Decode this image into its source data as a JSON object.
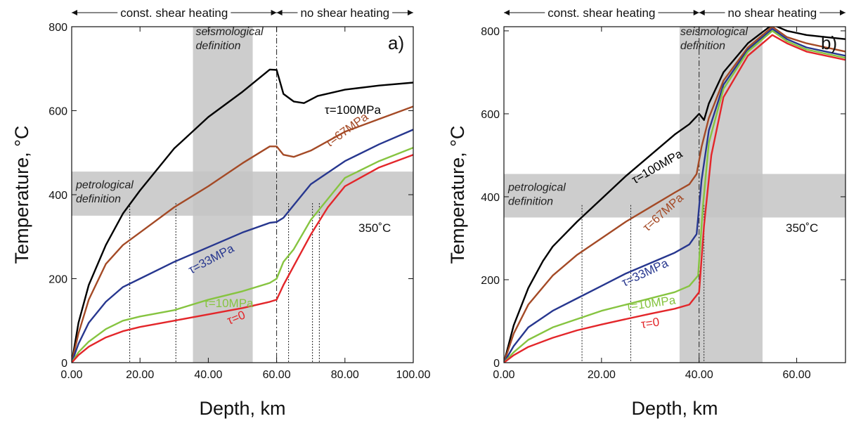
{
  "colors": {
    "100": "#000000",
    "67": "#a44a26",
    "33": "#27378f",
    "10": "#86c440",
    "0": "#e3262a",
    "band": "#c4c4c4"
  },
  "chart_data": [
    {
      "panel": "a)",
      "type": "line",
      "xlabel": "Depth, km",
      "ylabel": "Temperature, °C",
      "xlim": [
        0,
        100
      ],
      "ylim": [
        0,
        800
      ],
      "xticks": [
        "0.00",
        "20.00",
        "40.00",
        "60.00",
        "80.00",
        "100.00"
      ],
      "yticks": [
        "0",
        "200",
        "400",
        "600",
        "800"
      ],
      "top_annotations": {
        "left": "const. shear heating",
        "right": "no shear heating"
      },
      "divider_x": 60,
      "band_vertical": {
        "label": "seismological definition",
        "label_lines": [
          "seismological",
          "definition"
        ],
        "x": [
          35.5,
          53
        ]
      },
      "band_horizontal": {
        "label": "petrological definition",
        "label_lines": [
          "petrological",
          "definition"
        ],
        "y": [
          350,
          455
        ]
      },
      "isotherm_label": "350˚C",
      "grid": false,
      "series": [
        {
          "name": "τ=100MPa",
          "key": "100",
          "x": [
            0,
            2,
            5,
            10,
            15,
            20,
            30,
            40,
            50,
            58,
            60,
            62,
            65,
            68,
            72,
            80,
            90,
            100
          ],
          "y": [
            0,
            95,
            185,
            280,
            355,
            410,
            510,
            585,
            645,
            698,
            697,
            640,
            622,
            618,
            635,
            650,
            660,
            667
          ]
        },
        {
          "name": "τ=67MPa",
          "key": "67",
          "x": [
            0,
            2,
            5,
            10,
            15,
            20,
            30,
            40,
            50,
            58,
            60,
            62,
            65,
            70,
            80,
            90,
            100
          ],
          "y": [
            0,
            70,
            150,
            235,
            280,
            310,
            370,
            420,
            475,
            515,
            515,
            495,
            490,
            505,
            550,
            580,
            610
          ]
        },
        {
          "name": "τ=33MPa",
          "key": "33",
          "x": [
            0,
            2,
            5,
            10,
            15,
            20,
            30,
            40,
            50,
            58,
            60,
            62,
            65,
            70,
            80,
            90,
            100
          ],
          "y": [
            0,
            45,
            95,
            145,
            180,
            200,
            240,
            275,
            310,
            333,
            335,
            345,
            375,
            425,
            480,
            520,
            555
          ]
        },
        {
          "name": "τ=10MPa",
          "key": "10",
          "x": [
            0,
            2,
            5,
            10,
            15,
            20,
            30,
            40,
            50,
            58,
            60,
            62,
            65,
            70,
            75,
            80,
            90,
            100
          ],
          "y": [
            0,
            25,
            50,
            80,
            100,
            110,
            125,
            150,
            170,
            190,
            200,
            240,
            270,
            340,
            390,
            440,
            480,
            512
          ]
        },
        {
          "name": "τ=0",
          "key": "0",
          "x": [
            0,
            2,
            5,
            10,
            15,
            20,
            30,
            40,
            50,
            58,
            60,
            62,
            65,
            70,
            75,
            80,
            90,
            100
          ],
          "y": [
            0,
            18,
            38,
            60,
            75,
            85,
            100,
            115,
            130,
            145,
            150,
            185,
            230,
            305,
            370,
            420,
            465,
            495
          ]
        }
      ],
      "markers_x": [
        17,
        30.5,
        63.5,
        70.5,
        72.5
      ]
    },
    {
      "panel": "b)",
      "type": "line",
      "xlabel": "Depth, km",
      "ylabel": "Temperature, °C",
      "xlim": [
        0,
        70
      ],
      "ylim": [
        0,
        810
      ],
      "xticks": [
        "0.00",
        "20.00",
        "40.00",
        "60.00"
      ],
      "yticks": [
        "0",
        "200",
        "400",
        "600",
        "800"
      ],
      "top_annotations": {
        "left": "const. shear heating",
        "right": "no shear heating"
      },
      "divider_x": 40,
      "band_vertical": {
        "label": "seismological definition",
        "label_lines": [
          "seismological",
          "definition"
        ],
        "x": [
          36,
          53
        ]
      },
      "band_horizontal": {
        "label": "petrological definition",
        "label_lines": [
          "petrological",
          "definition"
        ],
        "y": [
          350,
          455
        ]
      },
      "isotherm_label": "350˚C",
      "grid": false,
      "series": [
        {
          "name": "τ=100MPa",
          "key": "100",
          "x": [
            0,
            2,
            5,
            8,
            10,
            15,
            20,
            25,
            30,
            35,
            38,
            40,
            41,
            42,
            45,
            50,
            55,
            58,
            62,
            66,
            70
          ],
          "y": [
            0,
            90,
            180,
            245,
            280,
            340,
            395,
            450,
            500,
            550,
            575,
            600,
            585,
            625,
            700,
            770,
            815,
            800,
            790,
            785,
            780
          ]
        },
        {
          "name": "τ=67MPa",
          "key": "67",
          "x": [
            0,
            2,
            5,
            10,
            15,
            20,
            25,
            30,
            35,
            38,
            39.5,
            40.5,
            42,
            45,
            50,
            55,
            58,
            62,
            66,
            70
          ],
          "y": [
            0,
            70,
            140,
            210,
            260,
            300,
            340,
            375,
            410,
            430,
            455,
            520,
            590,
            680,
            760,
            810,
            785,
            770,
            760,
            750
          ]
        },
        {
          "name": "τ=33MPa",
          "key": "33",
          "x": [
            0,
            2,
            5,
            10,
            15,
            20,
            25,
            30,
            35,
            38,
            39.5,
            40.5,
            42,
            45,
            50,
            55,
            58,
            62,
            66,
            70
          ],
          "y": [
            0,
            40,
            85,
            125,
            155,
            185,
            215,
            240,
            265,
            285,
            310,
            440,
            560,
            670,
            755,
            805,
            780,
            760,
            750,
            740
          ]
        },
        {
          "name": "τ=10MPa",
          "key": "10",
          "x": [
            0,
            2,
            5,
            10,
            15,
            20,
            25,
            30,
            35,
            38,
            39.8,
            40.8,
            42,
            45,
            50,
            55,
            58,
            62,
            66,
            70
          ],
          "y": [
            0,
            25,
            55,
            85,
            105,
            125,
            140,
            155,
            170,
            185,
            210,
            380,
            530,
            660,
            750,
            800,
            775,
            755,
            745,
            735
          ]
        },
        {
          "name": "τ=0",
          "key": "0",
          "x": [
            0,
            2,
            5,
            10,
            15,
            20,
            25,
            30,
            35,
            38,
            40,
            41,
            42.5,
            45,
            50,
            55,
            58,
            62,
            66,
            70
          ],
          "y": [
            0,
            18,
            38,
            60,
            78,
            92,
            105,
            118,
            130,
            140,
            170,
            330,
            500,
            640,
            740,
            790,
            770,
            750,
            740,
            730
          ]
        }
      ],
      "markers_x": [
        16,
        26,
        41
      ]
    }
  ]
}
